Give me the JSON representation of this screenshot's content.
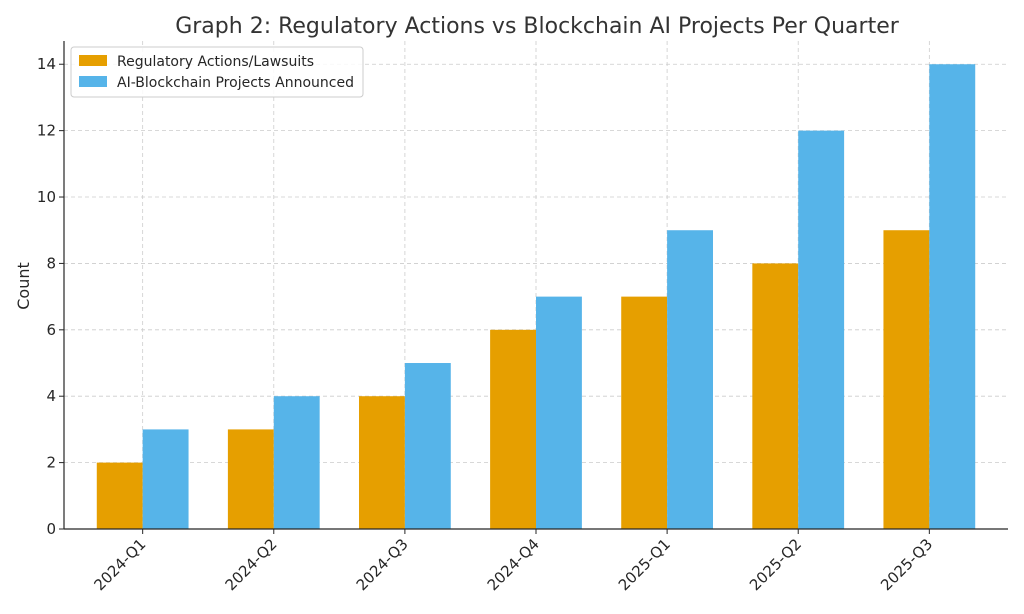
{
  "chart_data": {
    "type": "bar",
    "title": "Graph 2: Regulatory Actions vs Blockchain AI Projects Per Quarter",
    "xlabel": "",
    "ylabel": "Count",
    "categories": [
      "2024-Q1",
      "2024-Q2",
      "2024-Q3",
      "2024-Q4",
      "2025-Q1",
      "2025-Q2",
      "2025-Q3"
    ],
    "series": [
      {
        "name": "Regulatory Actions/Lawsuits",
        "values": [
          2,
          3,
          4,
          6,
          7,
          8,
          9
        ],
        "color": "#E69F00"
      },
      {
        "name": "AI-Blockchain Projects Announced",
        "values": [
          3,
          4,
          5,
          7,
          9,
          12,
          14
        ],
        "color": "#56B4E9"
      }
    ],
    "ylim": [
      0,
      14.7
    ],
    "yticks": [
      0,
      2,
      4,
      6,
      8,
      10,
      12,
      14
    ],
    "grid": true,
    "legend_position": "top-left"
  }
}
